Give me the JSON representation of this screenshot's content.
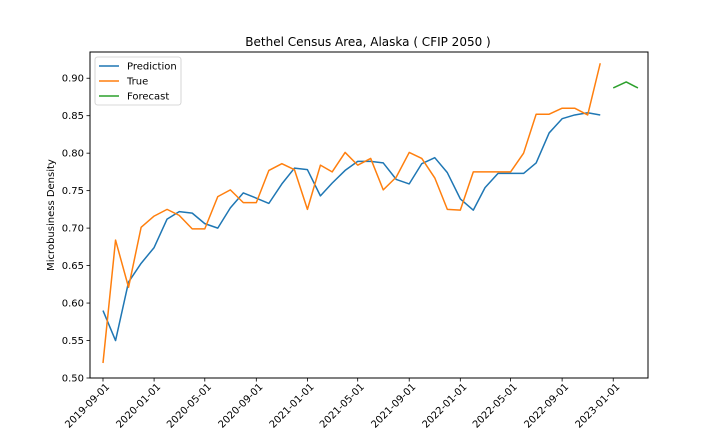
{
  "chart_data": {
    "type": "line",
    "title": "Bethel Census Area, Alaska ( CFIP 2050 )",
    "xlabel": "",
    "ylabel": "Microbusiness Density",
    "xlim": [
      "2019-08-01",
      "2023-03-25"
    ],
    "ylim": [
      0.5,
      0.935
    ],
    "x_ticks": [
      "2019-09-01",
      "2020-01-01",
      "2020-05-01",
      "2020-09-01",
      "2021-01-01",
      "2021-05-01",
      "2021-09-01",
      "2022-01-01",
      "2022-05-01",
      "2022-09-01",
      "2023-01-01"
    ],
    "y_ticks": [
      "0.50",
      "0.55",
      "0.60",
      "0.65",
      "0.70",
      "0.75",
      "0.80",
      "0.85",
      "0.90"
    ],
    "legend_position": "upper left",
    "grid": false,
    "series": [
      {
        "name": "Prediction",
        "color": "#1f77b4",
        "x": [
          "2019-09-01",
          "2019-10-01",
          "2019-11-01",
          "2019-12-01",
          "2020-01-01",
          "2020-02-01",
          "2020-03-01",
          "2020-04-01",
          "2020-05-01",
          "2020-06-01",
          "2020-07-01",
          "2020-08-01",
          "2020-09-01",
          "2020-10-01",
          "2020-11-01",
          "2020-12-01",
          "2021-01-01",
          "2021-02-01",
          "2021-03-01",
          "2021-04-01",
          "2021-05-01",
          "2021-06-01",
          "2021-07-01",
          "2021-08-01",
          "2021-09-01",
          "2021-10-01",
          "2021-11-01",
          "2021-12-01",
          "2022-01-01",
          "2022-02-01",
          "2022-03-01",
          "2022-04-01",
          "2022-05-01",
          "2022-06-01",
          "2022-07-01",
          "2022-08-01",
          "2022-09-01",
          "2022-10-01",
          "2022-11-01",
          "2022-12-01"
        ],
        "y": [
          0.59,
          0.55,
          0.628,
          0.653,
          0.674,
          0.712,
          0.722,
          0.72,
          0.706,
          0.7,
          0.727,
          0.747,
          0.74,
          0.733,
          0.759,
          0.78,
          0.778,
          0.743,
          0.76,
          0.777,
          0.789,
          0.789,
          0.787,
          0.765,
          0.759,
          0.786,
          0.794,
          0.774,
          0.739,
          0.724,
          0.754,
          0.773,
          0.773,
          0.773,
          0.787,
          0.827,
          0.846,
          0.851,
          0.854,
          0.851
        ]
      },
      {
        "name": "True",
        "color": "#ff7f0e",
        "x": [
          "2019-09-01",
          "2019-10-01",
          "2019-11-01",
          "2019-12-01",
          "2020-01-01",
          "2020-02-01",
          "2020-03-01",
          "2020-04-01",
          "2020-05-01",
          "2020-06-01",
          "2020-07-01",
          "2020-08-01",
          "2020-09-01",
          "2020-10-01",
          "2020-11-01",
          "2020-12-01",
          "2021-01-01",
          "2021-02-01",
          "2021-03-01",
          "2021-04-01",
          "2021-05-01",
          "2021-06-01",
          "2021-07-01",
          "2021-08-01",
          "2021-09-01",
          "2021-10-01",
          "2021-11-01",
          "2021-12-01",
          "2022-01-01",
          "2022-02-01",
          "2022-03-01",
          "2022-04-01",
          "2022-05-01",
          "2022-06-01",
          "2022-07-01",
          "2022-08-01",
          "2022-09-01",
          "2022-10-01",
          "2022-11-01",
          "2022-12-01"
        ],
        "y": [
          0.52,
          0.684,
          0.621,
          0.701,
          0.716,
          0.725,
          0.717,
          0.699,
          0.699,
          0.742,
          0.751,
          0.734,
          0.734,
          0.777,
          0.786,
          0.778,
          0.725,
          0.784,
          0.775,
          0.801,
          0.784,
          0.793,
          0.751,
          0.768,
          0.801,
          0.793,
          0.767,
          0.725,
          0.724,
          0.775,
          0.775,
          0.775,
          0.775,
          0.8,
          0.852,
          0.852,
          0.86,
          0.86,
          0.851,
          0.92
        ]
      },
      {
        "name": "Forecast",
        "color": "#2ca02c",
        "x": [
          "2023-01-01",
          "2023-02-01",
          "2023-03-01"
        ],
        "y": [
          0.887,
          0.895,
          0.887
        ]
      }
    ]
  }
}
